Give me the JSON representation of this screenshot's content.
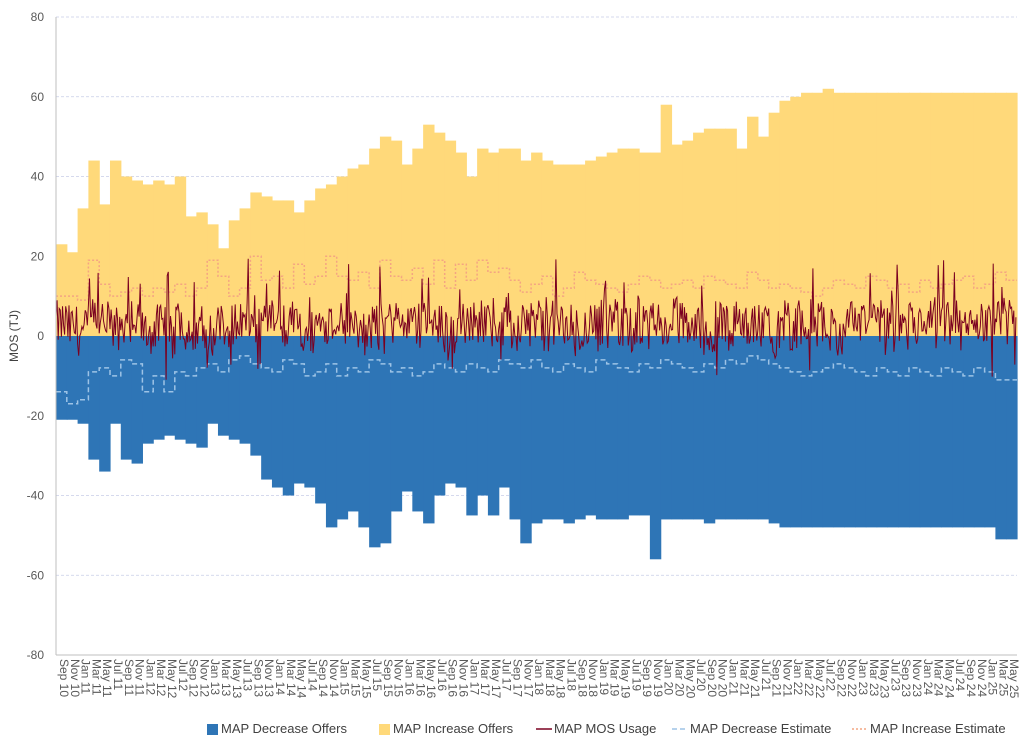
{
  "chart_data": {
    "type": "area",
    "title": "",
    "ylabel": "MOS (TJ)",
    "xlabel": "",
    "ylim": [
      -80,
      80
    ],
    "yticks": [
      -80,
      -60,
      -40,
      -20,
      0,
      20,
      40,
      60,
      80
    ],
    "grid": true,
    "legend_position": "bottom",
    "colors": {
      "decrease_offers": "#2e75b6",
      "increase_offers": "#ffd97a",
      "mos_usage": "#7a0020",
      "decrease_estimate": "#9dc3e6",
      "increase_estimate": "#f4a582",
      "gridline": "#c8cde8",
      "axis": "#bfbfbf"
    },
    "x_tick_labels": [
      "Sep 10",
      "Nov 10",
      "Jan 11",
      "Mar 11",
      "May 11",
      "Jul 11",
      "Sep 11",
      "Nov 11",
      "Jan 12",
      "Mar 12",
      "May 12",
      "Jul 12",
      "Sep 12",
      "Nov 12",
      "Jan 13",
      "Mar 13",
      "May 13",
      "Jul 13",
      "Sep 13",
      "Nov 13",
      "Jan 14",
      "Mar 14",
      "May 14",
      "Jul 14",
      "Sep 14",
      "Nov 14",
      "Jan 15",
      "Mar 15",
      "May 15",
      "Jul 15",
      "Sep 15",
      "Nov 15",
      "Jan 16",
      "Mar 16",
      "May 16",
      "Jul 16",
      "Sep 16",
      "Nov 16",
      "Jan 17",
      "Mar 17",
      "May 17",
      "Jul 17",
      "Sep 17",
      "Nov 17",
      "Jan 18",
      "Mar 18",
      "May 18",
      "Jul 18",
      "Sep 18",
      "Nov 18",
      "Jan 19",
      "Mar 19",
      "May 19",
      "Jul 19",
      "Sep 19",
      "Nov 19",
      "Jan 20",
      "Mar 20",
      "May 20",
      "Jul 20",
      "Sep 20",
      "Nov 20",
      "Jan 21",
      "Mar 21",
      "May 21",
      "Jul 21",
      "Sep 21",
      "Nov 21",
      "Jan 22",
      "Mar 22",
      "May 22",
      "Jul 22",
      "Sep 22",
      "Nov 22",
      "Jan 23",
      "Mar 23",
      "May 23",
      "Jul 23",
      "Sep 23",
      "Nov 23",
      "Jan 24",
      "Mar 24",
      "May 24",
      "Jul 24",
      "Sep 24",
      "Nov 24",
      "Jan 25",
      "Mar 25",
      "May 25"
    ],
    "series": [
      {
        "name": "MAP Decrease Offers",
        "kind": "area",
        "values": [
          -21,
          -21,
          -22,
          -31,
          -34,
          -22,
          -31,
          -32,
          -27,
          -26,
          -25,
          -26,
          -27,
          -28,
          -22,
          -25,
          -26,
          -27,
          -30,
          -36,
          -38,
          -40,
          -37,
          -38,
          -42,
          -48,
          -46,
          -44,
          -48,
          -53,
          -52,
          -44,
          -39,
          -44,
          -47,
          -40,
          -37,
          -38,
          -45,
          -40,
          -45,
          -38,
          -46,
          -52,
          -47,
          -46,
          -46,
          -47,
          -46,
          -45,
          -46,
          -46,
          -46,
          -45,
          -45,
          -56,
          -46,
          -46,
          -46,
          -46,
          -47,
          -46,
          -46,
          -46,
          -46,
          -46,
          -47,
          -48,
          -48,
          -48,
          -48,
          -48,
          -48,
          -48,
          -48,
          -48,
          -48,
          -48,
          -48,
          -48,
          -48,
          -48,
          -48,
          -48,
          -48,
          -48,
          -48,
          -51,
          -51
        ]
      },
      {
        "name": "MAP Increase Offers",
        "kind": "area",
        "values": [
          23,
          21,
          32,
          44,
          33,
          44,
          40,
          39,
          38,
          39,
          38,
          40,
          30,
          31,
          28,
          22,
          29,
          32,
          36,
          35,
          34,
          34,
          31,
          34,
          37,
          38,
          40,
          42,
          43,
          47,
          50,
          49,
          43,
          47,
          53,
          51,
          49,
          46,
          40,
          47,
          46,
          47,
          47,
          44,
          46,
          44,
          43,
          43,
          43,
          44,
          45,
          46,
          47,
          47,
          46,
          46,
          58,
          48,
          49,
          51,
          52,
          52,
          52,
          47,
          55,
          50,
          56,
          59,
          60,
          61,
          61,
          62,
          61,
          61,
          61,
          61,
          61,
          61,
          61,
          61,
          61,
          61,
          61,
          61,
          61,
          61,
          61,
          61,
          61
        ]
      },
      {
        "name": "MAP MOS Usage",
        "kind": "line",
        "values": [
          3,
          2,
          1,
          4,
          3,
          2,
          4,
          3,
          1,
          2,
          3,
          4,
          2,
          3,
          1,
          2,
          3,
          4,
          3,
          2,
          4,
          3,
          2,
          1,
          3,
          4,
          2,
          3,
          1,
          2,
          3,
          4,
          2,
          3,
          4,
          2,
          1,
          3,
          2,
          4,
          3,
          2,
          1,
          3,
          4,
          2,
          3,
          2,
          1,
          3,
          2,
          4,
          3,
          2,
          1,
          3,
          2,
          4,
          3,
          2,
          1,
          3,
          2,
          4,
          3,
          2,
          1,
          3,
          2,
          4,
          3,
          2,
          1,
          3,
          2,
          4,
          3,
          2,
          1,
          3,
          2,
          4,
          3,
          2,
          1,
          3,
          2,
          4,
          3
        ]
      },
      {
        "name": "MAP Decrease Estimate",
        "kind": "line",
        "values": [
          -14,
          -17,
          -16,
          -9,
          -8,
          -10,
          -6,
          -7,
          -14,
          -10,
          -14,
          -9,
          -10,
          -8,
          -7,
          -9,
          -6,
          -5,
          -7,
          -8,
          -9,
          -6,
          -7,
          -10,
          -9,
          -7,
          -10,
          -8,
          -9,
          -6,
          -7,
          -9,
          -8,
          -10,
          -9,
          -7,
          -8,
          -9,
          -7,
          -8,
          -9,
          -6,
          -7,
          -8,
          -6,
          -8,
          -9,
          -7,
          -8,
          -9,
          -6,
          -7,
          -8,
          -9,
          -7,
          -8,
          -6,
          -7,
          -8,
          -9,
          -7,
          -8,
          -6,
          -7,
          -5,
          -6,
          -7,
          -8,
          -9,
          -10,
          -9,
          -8,
          -7,
          -8,
          -9,
          -10,
          -8,
          -9,
          -10,
          -8,
          -9,
          -10,
          -8,
          -9,
          -10,
          -8,
          -9,
          -11,
          -11
        ]
      },
      {
        "name": "MAP Increase Estimate",
        "kind": "line",
        "values": [
          10,
          10,
          9,
          19,
          13,
          10,
          11,
          12,
          10,
          12,
          11,
          13,
          10,
          12,
          19,
          15,
          10,
          12,
          20,
          14,
          15,
          12,
          18,
          13,
          15,
          20,
          15,
          14,
          16,
          12,
          19,
          15,
          14,
          17,
          13,
          19,
          12,
          18,
          14,
          19,
          16,
          17,
          14,
          11,
          13,
          15,
          10,
          12,
          16,
          14,
          13,
          12,
          11,
          13,
          15,
          14,
          12,
          13,
          14,
          12,
          15,
          14,
          13,
          12,
          16,
          14,
          12,
          13,
          12,
          11,
          10,
          12,
          14,
          13,
          12,
          15,
          14,
          12,
          13,
          11,
          14,
          12,
          13,
          14,
          15,
          12,
          13,
          16,
          14
        ]
      }
    ],
    "legend": [
      "MAP Decrease Offers",
      "MAP Increase Offers",
      "MAP MOS Usage",
      "MAP Decrease Estimate",
      "MAP Increase Estimate"
    ]
  }
}
